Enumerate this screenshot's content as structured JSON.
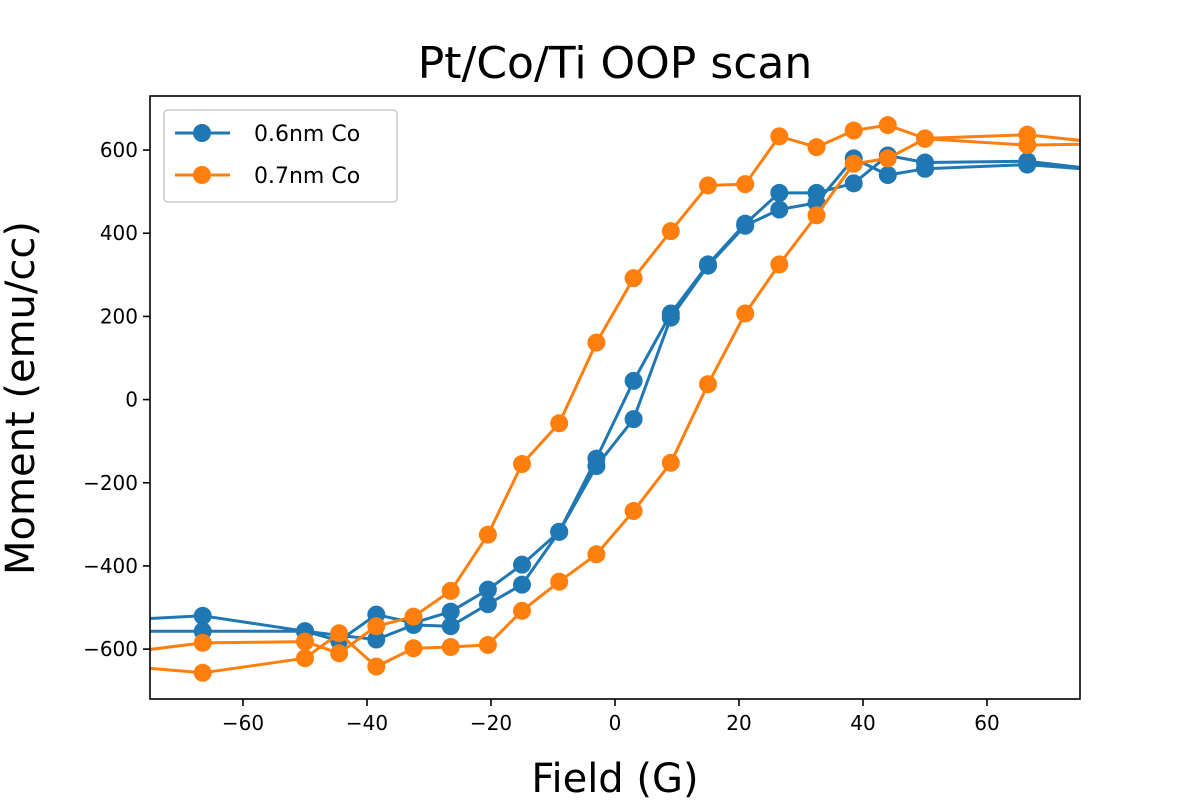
{
  "chart_data": {
    "type": "line",
    "title": "Pt/Co/Ti OOP scan",
    "xlabel": "Field (G)",
    "ylabel": "Moment (emu/cc)",
    "xlim": [
      -75,
      75
    ],
    "ylim": [
      -720,
      730
    ],
    "xticks": [
      -60,
      -40,
      -20,
      0,
      20,
      40,
      60
    ],
    "xtick_labels": [
      "−60",
      "−40",
      "−20",
      "0",
      "20",
      "40",
      "60"
    ],
    "yticks": [
      -600,
      -400,
      -200,
      0,
      200,
      400,
      600
    ],
    "ytick_labels": [
      "−600",
      "−400",
      "−200",
      "0",
      "200",
      "400",
      "600"
    ],
    "grid": false,
    "legend_position": "top-left",
    "series": [
      {
        "name": "0.6nm Co",
        "color": "#1f77b4",
        "marker": "circle",
        "x": [
          -80,
          -66.5,
          -50,
          -44.5,
          -38.5,
          -32.5,
          -26.5,
          -20.5,
          -15,
          -9,
          -3,
          3,
          9,
          15,
          21,
          26.5,
          32.5,
          38.5,
          44,
          50,
          66.5,
          80,
          66.5,
          50,
          44,
          38.5,
          32.5,
          26.5,
          21,
          15,
          9,
          3,
          -3,
          -9,
          -15,
          -20.5,
          -26.5,
          -32.5,
          -38.5,
          -44.5,
          -50,
          -66.5,
          -80
        ],
        "y": [
          -530,
          -520,
          -557,
          -580,
          -517,
          -537,
          -510,
          -457,
          -397,
          -318,
          -142,
          45,
          207,
          325,
          423,
          497,
          497,
          520,
          587,
          570,
          573,
          550,
          565,
          555,
          540,
          580,
          473,
          457,
          418,
          322,
          197,
          -47,
          -160,
          -318,
          -445,
          -492,
          -545,
          -542,
          -577,
          -567,
          -557,
          -557,
          -557
        ]
      },
      {
        "name": "0.7nm Co",
        "color": "#ff7f0e",
        "marker": "circle",
        "x": [
          -80,
          -66.5,
          -50,
          -44.5,
          -38.5,
          -32.5,
          -26.5,
          -20.5,
          -15,
          -9,
          -3,
          3,
          9,
          15,
          21,
          26.5,
          32.5,
          38.5,
          44,
          50,
          66.5,
          80,
          66.5,
          50,
          44,
          38.5,
          32.5,
          26.5,
          21,
          15,
          9,
          3,
          -3,
          -9,
          -15,
          -20.5,
          -26.5,
          -32.5,
          -38.5,
          -44.5,
          -50,
          -66.5,
          -80
        ],
        "y": [
          -610,
          -585,
          -582,
          -610,
          -545,
          -522,
          -460,
          -325,
          -155,
          -57,
          137,
          292,
          405,
          515,
          518,
          633,
          607,
          647,
          660,
          628,
          637,
          615,
          612,
          627,
          580,
          567,
          443,
          325,
          207,
          37,
          -152,
          -268,
          -372,
          -438,
          -508,
          -590,
          -595,
          -598,
          -642,
          -562,
          -622,
          -657,
          -640
        ]
      }
    ]
  }
}
